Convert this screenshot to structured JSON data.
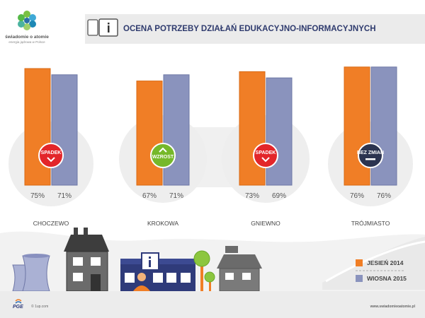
{
  "logo": {
    "name": "świadomie o atomie",
    "tagline": "energia jądrowa w Polsce"
  },
  "header": {
    "title": "OCENA POTRZEBY DZIAŁAŃ EDUKACYJNO-INFORMACYJNYCH",
    "info_icon": "info-icon"
  },
  "legend": [
    {
      "label": "JESIEŃ 2014",
      "color": "#f07e26"
    },
    {
      "label": "WIOSNA 2015",
      "color": "#8a93bd"
    }
  ],
  "chart_data": {
    "type": "bar",
    "categories": [
      "CHOCZEWO",
      "KROKOWA",
      "GNIEWNO",
      "TRÓJMIASTO"
    ],
    "series": [
      {
        "name": "JESIEŃ 2014",
        "values": [
          75,
          67,
          73,
          76
        ],
        "labels": [
          "75%",
          "67%",
          "73%",
          "76%"
        ]
      },
      {
        "name": "WIOSNA 2015",
        "values": [
          71,
          71,
          69,
          76
        ],
        "labels": [
          "71%",
          "71%",
          "69%",
          "76%"
        ]
      }
    ],
    "badges": [
      {
        "text": "SPADEK",
        "kind": "down",
        "color": "#e3262a"
      },
      {
        "text": "WZROST",
        "kind": "up",
        "color": "#76b82a"
      },
      {
        "text": "SPADEK",
        "kind": "down",
        "color": "#e3262a"
      },
      {
        "text": "BEZ ZMIAN",
        "kind": "flat",
        "color": "#2c3450"
      }
    ],
    "colors": [
      "#f07e26",
      "#8a93bd"
    ]
  },
  "footer": {
    "brand": "PGE",
    "copyright": "© 1up.com",
    "url": "www.swiadomieoatomie.pl"
  }
}
